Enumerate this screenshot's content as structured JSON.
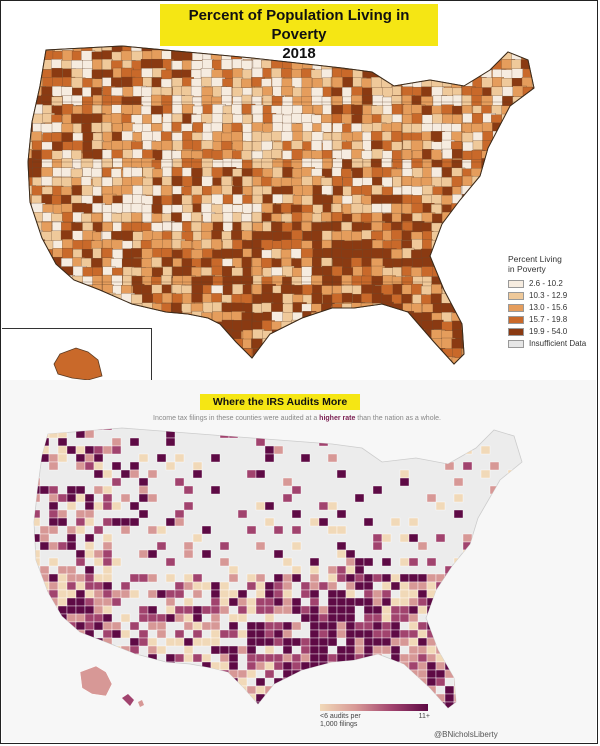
{
  "top_panel": {
    "title": "Percent of Population Living in Poverty",
    "year": "2018",
    "legend": {
      "title": "Percent Living in Poverty",
      "items": [
        {
          "label": "2.6 - 10.2",
          "color": "#f6ece0"
        },
        {
          "label": "10.3 - 12.9",
          "color": "#efc99a"
        },
        {
          "label": "13.0 - 15.6",
          "color": "#e59d5c"
        },
        {
          "label": "15.7 - 19.8",
          "color": "#c9692a"
        },
        {
          "label": "19.9 - 54.0",
          "color": "#8a3a12"
        },
        {
          "label": "Insufficient Data",
          "color": "#e6e6e6"
        }
      ]
    }
  },
  "bottom_panel": {
    "title": "Where the IRS Audits More",
    "description_pre": "Income tax filings in these counties were audited at a ",
    "description_highlight": "higher rate",
    "description_post": " than the nation as a whole.",
    "legend": {
      "low_label": "<6 audits per 1,000 filings",
      "high_label": "11+"
    },
    "credit": "@BNicholsLiberty"
  },
  "colors": {
    "title_highlight": "#f5e614",
    "poverty_scale": [
      "#f6ece0",
      "#efc99a",
      "#e59d5c",
      "#c9692a",
      "#8a3a12"
    ],
    "audit_scale": [
      "#f1d9b8",
      "#d79896",
      "#a1436e",
      "#5e0a45"
    ]
  }
}
